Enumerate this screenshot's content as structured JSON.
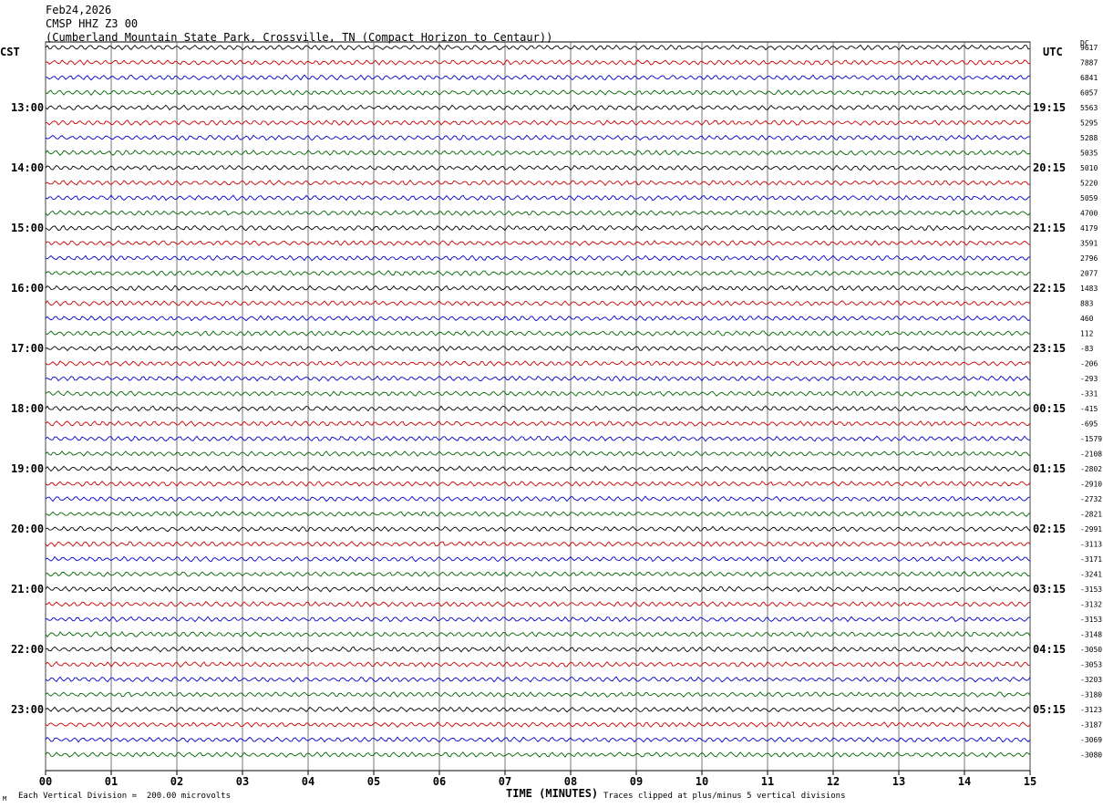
{
  "header": {
    "date": "Feb24,2026",
    "channel": "CMSP HHZ Z3 00",
    "station": "(Cumberland Mountain State Park, Crossville, TN (Compact Horizon to Centaur))"
  },
  "left_timezone": "CST",
  "right_timezone": "UTC",
  "dc_label": "DC",
  "footer": {
    "scale_note": "Each Vertical Division =  200.00 microvolts",
    "clip_note": "Traces clipped at plus/minus 5 vertical divisions",
    "xtitle": "TIME (MINUTES)",
    "corner_mark": "M"
  },
  "colors": {
    "trace_cycle": [
      "#000000",
      "#cc0000",
      "#0000cc",
      "#006600"
    ],
    "grid": "#000000",
    "background": "#ffffff"
  },
  "chart_data": {
    "type": "line",
    "description_type": "helicorder",
    "x_ticks": [
      "00",
      "01",
      "02",
      "03",
      "04",
      "05",
      "06",
      "07",
      "08",
      "09",
      "10",
      "11",
      "12",
      "13",
      "14",
      "15"
    ],
    "xlim": [
      0,
      15
    ],
    "left_hour_labels": [
      {
        "label": "13:00",
        "trace": 4
      },
      {
        "label": "14:00",
        "trace": 8
      },
      {
        "label": "15:00",
        "trace": 12
      },
      {
        "label": "16:00",
        "trace": 16
      },
      {
        "label": "17:00",
        "trace": 20
      },
      {
        "label": "18:00",
        "trace": 24
      },
      {
        "label": "19:00",
        "trace": 28
      },
      {
        "label": "20:00",
        "trace": 32
      },
      {
        "label": "21:00",
        "trace": 36
      },
      {
        "label": "22:00",
        "trace": 40
      },
      {
        "label": "23:00",
        "trace": 44
      }
    ],
    "right_hour_labels": [
      {
        "label": "19:15",
        "trace": 4
      },
      {
        "label": "20:15",
        "trace": 8
      },
      {
        "label": "21:15",
        "trace": 12
      },
      {
        "label": "22:15",
        "trace": 16
      },
      {
        "label": "23:15",
        "trace": 20
      },
      {
        "label": "00:15",
        "trace": 24
      },
      {
        "label": "01:15",
        "trace": 28
      },
      {
        "label": "02:15",
        "trace": 32
      },
      {
        "label": "03:15",
        "trace": 36
      },
      {
        "label": "04:15",
        "trace": 40
      },
      {
        "label": "05:15",
        "trace": 44
      }
    ],
    "dc_offsets": [
      "9617",
      "7887",
      "6841",
      "6057",
      "5563",
      "5295",
      "5288",
      "5035",
      "5010",
      "5220",
      "5059",
      "4700",
      "4179",
      "3591",
      "2796",
      "2077",
      "1483",
      "883",
      "460",
      "112",
      "-83",
      "-206",
      "-293",
      "-331",
      "-415",
      "-695",
      "-1579",
      "-2108",
      "-2802",
      "-2910",
      "-2732",
      "-2821",
      "-2991",
      "-3113",
      "-3171",
      "-3241",
      "-3153",
      "-3132",
      "-3153",
      "-3148",
      "-3050",
      "-3053",
      "-3203",
      "-3180",
      "-3123",
      "-3187",
      "-3069",
      "-3080"
    ]
  }
}
